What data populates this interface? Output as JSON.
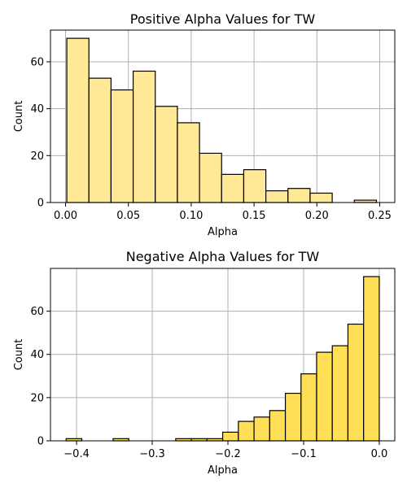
{
  "chart_data": [
    {
      "type": "bar",
      "title": "Positive Alpha Values for TW",
      "xlabel": "Alpha",
      "ylabel": "Count",
      "bar_color": "#ffe896",
      "edge_color": "#000000",
      "grid": true,
      "xlim": [
        -0.012,
        0.262
      ],
      "ylim": [
        0,
        73.5
      ],
      "x_ticks": [
        0.0,
        0.05,
        0.1,
        0.15,
        0.2,
        0.25
      ],
      "x_tick_labels": [
        "0.00",
        "0.05",
        "0.10",
        "0.15",
        "0.20",
        "0.25"
      ],
      "y_ticks": [
        0,
        20,
        40,
        60
      ],
      "y_tick_labels": [
        "0",
        "20",
        "40",
        "60"
      ],
      "bins": [
        {
          "x0": 0.001,
          "x1": 0.0186,
          "count": 70
        },
        {
          "x0": 0.0186,
          "x1": 0.0362,
          "count": 53
        },
        {
          "x0": 0.0362,
          "x1": 0.0538,
          "count": 48
        },
        {
          "x0": 0.0538,
          "x1": 0.0714,
          "count": 56
        },
        {
          "x0": 0.0714,
          "x1": 0.089,
          "count": 41
        },
        {
          "x0": 0.089,
          "x1": 0.1066,
          "count": 34
        },
        {
          "x0": 0.1066,
          "x1": 0.1242,
          "count": 21
        },
        {
          "x0": 0.1242,
          "x1": 0.1418,
          "count": 12
        },
        {
          "x0": 0.1418,
          "x1": 0.1594,
          "count": 14
        },
        {
          "x0": 0.1594,
          "x1": 0.177,
          "count": 5
        },
        {
          "x0": 0.177,
          "x1": 0.1946,
          "count": 6
        },
        {
          "x0": 0.1946,
          "x1": 0.2122,
          "count": 4
        },
        {
          "x0": 0.2122,
          "x1": 0.2298,
          "count": 0
        },
        {
          "x0": 0.2298,
          "x1": 0.2474,
          "count": 1
        }
      ]
    },
    {
      "type": "bar",
      "title": "Negative Alpha Values for TW",
      "xlabel": "Alpha",
      "ylabel": "Count",
      "bar_color": "#ffdf55",
      "edge_color": "#000000",
      "grid": true,
      "xlim": [
        -0.4345,
        0.0205
      ],
      "ylim": [
        0,
        79.8
      ],
      "x_ticks": [
        -0.4,
        -0.3,
        -0.2,
        -0.1,
        0.0
      ],
      "x_tick_labels": [
        "−0.4",
        "−0.3",
        "−0.2",
        "−0.1",
        "0.0"
      ],
      "y_ticks": [
        0,
        20,
        40,
        60
      ],
      "y_tick_labels": [
        "0",
        "20",
        "40",
        "60"
      ],
      "bins": [
        {
          "x0": -0.4138,
          "x1": -0.3931,
          "count": 1
        },
        {
          "x0": -0.3931,
          "x1": -0.3724,
          "count": 0
        },
        {
          "x0": -0.3724,
          "x1": -0.3517,
          "count": 0
        },
        {
          "x0": -0.3517,
          "x1": -0.331,
          "count": 1
        },
        {
          "x0": -0.331,
          "x1": -0.3103,
          "count": 0
        },
        {
          "x0": -0.3103,
          "x1": -0.2897,
          "count": 0
        },
        {
          "x0": -0.2897,
          "x1": -0.269,
          "count": 0
        },
        {
          "x0": -0.269,
          "x1": -0.2483,
          "count": 1
        },
        {
          "x0": -0.2483,
          "x1": -0.2276,
          "count": 1
        },
        {
          "x0": -0.2276,
          "x1": -0.2069,
          "count": 1
        },
        {
          "x0": -0.2069,
          "x1": -0.1862,
          "count": 4
        },
        {
          "x0": -0.1862,
          "x1": -0.1655,
          "count": 9
        },
        {
          "x0": -0.1655,
          "x1": -0.1448,
          "count": 11
        },
        {
          "x0": -0.1448,
          "x1": -0.1241,
          "count": 14
        },
        {
          "x0": -0.1241,
          "x1": -0.1034,
          "count": 22
        },
        {
          "x0": -0.1034,
          "x1": -0.0828,
          "count": 31
        },
        {
          "x0": -0.0828,
          "x1": -0.0621,
          "count": 41
        },
        {
          "x0": -0.0621,
          "x1": -0.0414,
          "count": 44
        },
        {
          "x0": -0.0414,
          "x1": -0.0207,
          "count": 54
        },
        {
          "x0": -0.0207,
          "x1": 0.0,
          "count": 76
        }
      ]
    }
  ]
}
